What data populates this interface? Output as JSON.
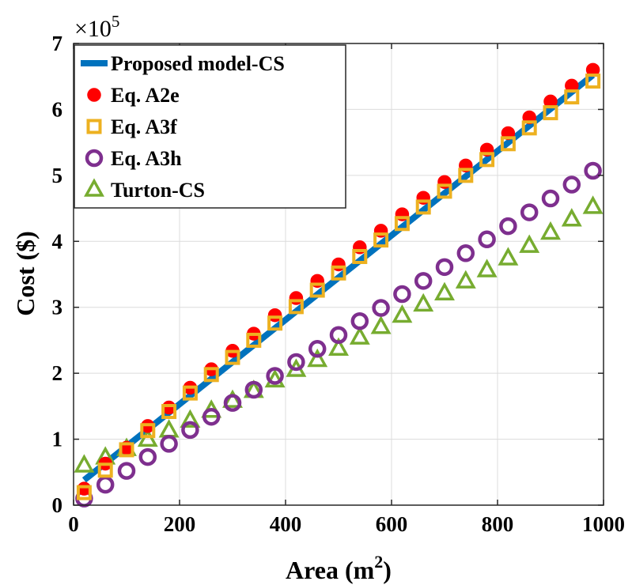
{
  "chart_data": {
    "type": "scatter",
    "xlabel": "Area (m",
    "xlabel_sup": "2",
    "xlabel_tail": ")",
    "ylabel": "Cost ($)",
    "y_multiplier": "×10",
    "y_multiplier_exp": "5",
    "xlim": [
      0,
      1000
    ],
    "ylim": [
      0,
      7
    ],
    "x_ticks": [
      0,
      200,
      400,
      600,
      800,
      1000
    ],
    "x_tick_labels": [
      "0",
      "200",
      "400",
      "600",
      "800",
      "1000"
    ],
    "y_ticks": [
      0,
      1,
      2,
      3,
      4,
      5,
      6,
      7
    ],
    "y_tick_labels": [
      "0",
      "1",
      "2",
      "3",
      "4",
      "5",
      "6",
      "7"
    ],
    "grid": true,
    "legend_position": "top-left",
    "x": [
      20,
      60,
      100,
      140,
      180,
      220,
      260,
      300,
      340,
      380,
      420,
      460,
      500,
      540,
      580,
      620,
      660,
      700,
      740,
      780,
      820,
      860,
      900,
      940,
      980
    ],
    "series": [
      {
        "name": "Proposed model-CS",
        "marker": "line",
        "color": "#0072bd",
        "x": [
          20,
          980
        ],
        "values": [
          0.38,
          6.52
        ]
      },
      {
        "name": "Eq. A2e",
        "marker": "filled-circle",
        "color": "#ff0000",
        "values": [
          0.25,
          0.63,
          0.87,
          1.2,
          1.48,
          1.78,
          2.06,
          2.34,
          2.6,
          2.88,
          3.14,
          3.4,
          3.65,
          3.91,
          4.16,
          4.41,
          4.66,
          4.9,
          5.15,
          5.39,
          5.64,
          5.88,
          6.12,
          6.36,
          6.6
        ]
      },
      {
        "name": "Eq. A3f",
        "marker": "square",
        "color": "#edb120",
        "values": [
          0.19,
          0.53,
          0.84,
          1.13,
          1.42,
          1.7,
          1.98,
          2.24,
          2.5,
          2.76,
          3.01,
          3.26,
          3.52,
          3.77,
          4.02,
          4.27,
          4.52,
          4.76,
          5.0,
          5.24,
          5.48,
          5.72,
          5.95,
          6.19,
          6.43
        ]
      },
      {
        "name": "Eq. A3h",
        "marker": "circle",
        "color": "#7e2f8e",
        "values": [
          0.1,
          0.31,
          0.52,
          0.73,
          0.93,
          1.14,
          1.34,
          1.55,
          1.75,
          1.96,
          2.17,
          2.37,
          2.58,
          2.79,
          2.99,
          3.2,
          3.4,
          3.61,
          3.82,
          4.03,
          4.23,
          4.44,
          4.65,
          4.86,
          5.07
        ]
      },
      {
        "name": "Turton-CS",
        "marker": "triangle",
        "color": "#77ac30",
        "values": [
          0.6,
          0.72,
          0.85,
          0.99,
          1.13,
          1.28,
          1.43,
          1.58,
          1.73,
          1.89,
          2.05,
          2.2,
          2.37,
          2.54,
          2.7,
          2.87,
          3.04,
          3.21,
          3.39,
          3.56,
          3.74,
          3.93,
          4.13,
          4.33,
          4.52
        ]
      }
    ]
  }
}
